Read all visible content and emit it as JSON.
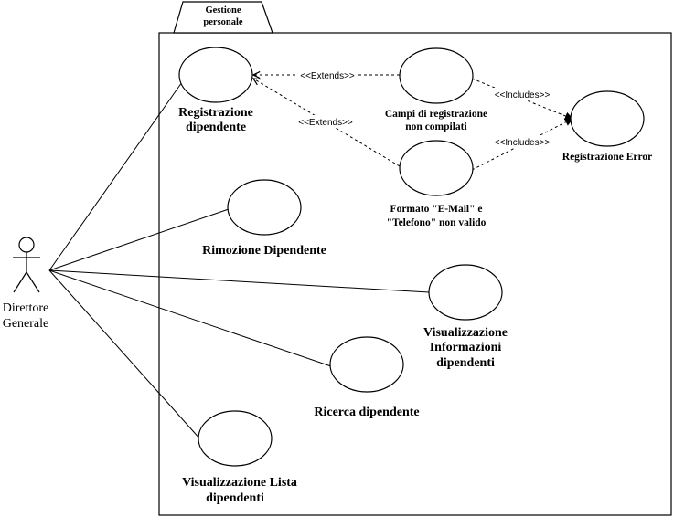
{
  "system_boundary": {
    "title_line1": "Gestione",
    "title_line2": "personale"
  },
  "actor": {
    "name_line1": "Direttore",
    "name_line2": "Generale"
  },
  "use_cases": {
    "registrazione": {
      "line1": "Registrazione",
      "line2": "dipendente"
    },
    "rimozione": {
      "line1": "Rimozione Dipendente"
    },
    "visualizzazione_info": {
      "line1": "Visualizzazione",
      "line2": "Informazioni",
      "line3": "dipendenti"
    },
    "ricerca": {
      "line1": "Ricerca dipendente"
    },
    "visualizzazione_lista": {
      "line1": "Visualizzazione Lista",
      "line2": "dipendenti"
    },
    "campi": {
      "line1": "Campi di registrazione",
      "line2": "non compilati"
    },
    "formato": {
      "line1": "Formato \"E-Mail\" e",
      "line2": "\"Telefono\" non valido"
    },
    "registrazione_error": {
      "line1": "Registrazione Error"
    }
  },
  "relations": {
    "extends_1": "<<Extends>>",
    "extends_2": "<<Extends>>",
    "includes_1": "<<Includes>>",
    "includes_2": "<<Includes>>"
  },
  "colors": {
    "stroke": "#000000",
    "background": "#ffffff"
  }
}
